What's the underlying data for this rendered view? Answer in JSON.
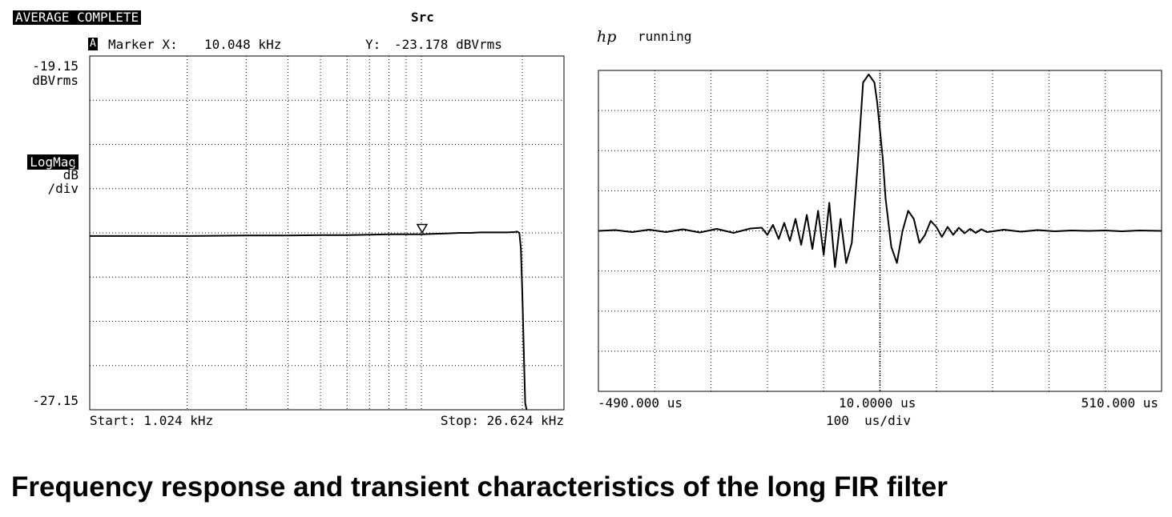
{
  "left_panel": {
    "status": "AVERAGE COMPLETE",
    "channel": "Src",
    "marker_badge": "A",
    "marker_x_label": "Marker X:",
    "marker_x_value": "10.048 kHz",
    "marker_y_label": "Y:",
    "marker_y_value": "-23.178 dBVrms",
    "y_top_value": "-19.15",
    "y_top_unit": "dBVrms",
    "scale_mode": "LogMag",
    "scale_value": "1",
    "scale_unit": "dB",
    "scale_per": "/div",
    "y_bottom_value": "-27.15",
    "start_label": "Start: 1.024 kHz",
    "stop_label": "Stop: 26.624 kHz"
  },
  "right_panel": {
    "logo": "hp",
    "status": "running",
    "x_left_label": "-490.000 us",
    "x_center_label": "10.0000 us",
    "x_right_label": "510.000 us",
    "timebase": "100  us/div"
  },
  "caption": "Frequency response and transient characteristics of the long FIR filter",
  "chart_data": [
    {
      "type": "line",
      "scale": "log-x",
      "xlim": [
        1.024,
        26.624
      ],
      "ylim": [
        -27.15,
        -19.15
      ],
      "grid": true,
      "marker": {
        "x": 10.048,
        "y": -23.178
      },
      "series": [
        {
          "x": [
            1.024,
            2,
            3,
            4,
            5,
            6,
            7,
            8,
            9,
            10,
            11,
            12,
            13,
            14,
            15,
            16,
            17,
            18,
            19,
            19.3,
            19.6,
            19.8,
            20.0,
            20.2,
            20.4,
            20.6
          ],
          "values": [
            -23.22,
            -23.22,
            -23.21,
            -23.21,
            -23.2,
            -23.2,
            -23.19,
            -23.18,
            -23.18,
            -23.18,
            -23.17,
            -23.16,
            -23.15,
            -23.15,
            -23.14,
            -23.14,
            -23.14,
            -23.14,
            -23.13,
            -23.12,
            -23.15,
            -23.5,
            -24.5,
            -25.8,
            -27.0,
            -27.15
          ]
        }
      ]
    },
    {
      "type": "line",
      "xlim": [
        -490,
        510
      ],
      "ylim": [
        -4,
        4
      ],
      "grid": true,
      "series": [
        {
          "x": [
            -490,
            -460,
            -430,
            -400,
            -370,
            -340,
            -310,
            -280,
            -250,
            -220,
            -200,
            -190,
            -180,
            -170,
            -160,
            -150,
            -140,
            -130,
            -120,
            -110,
            -100,
            -90,
            -80,
            -70,
            -60,
            -50,
            -40,
            -30,
            -20,
            -10,
            0,
            5,
            10,
            15,
            20,
            30,
            40,
            50,
            60,
            70,
            80,
            90,
            100,
            110,
            120,
            130,
            140,
            150,
            160,
            170,
            180,
            190,
            200,
            230,
            260,
            290,
            320,
            350,
            380,
            410,
            440,
            470,
            510
          ],
          "values": [
            0.0,
            0.02,
            -0.03,
            0.03,
            -0.03,
            0.04,
            -0.04,
            0.05,
            -0.05,
            0.06,
            0.08,
            -0.1,
            0.15,
            -0.2,
            0.2,
            -0.25,
            0.3,
            -0.35,
            0.4,
            -0.45,
            0.5,
            -0.6,
            0.7,
            -0.9,
            0.3,
            -0.8,
            -0.3,
            1.6,
            3.7,
            3.9,
            3.7,
            3.2,
            2.5,
            1.8,
            0.8,
            -0.4,
            -0.8,
            0.0,
            0.5,
            0.3,
            -0.3,
            -0.1,
            0.25,
            0.1,
            -0.15,
            0.1,
            -0.1,
            0.08,
            -0.06,
            0.05,
            -0.05,
            0.04,
            -0.03,
            0.03,
            -0.02,
            0.02,
            -0.01,
            0.01,
            0.0,
            0.01,
            -0.01,
            0.01,
            0.0
          ]
        }
      ]
    }
  ]
}
